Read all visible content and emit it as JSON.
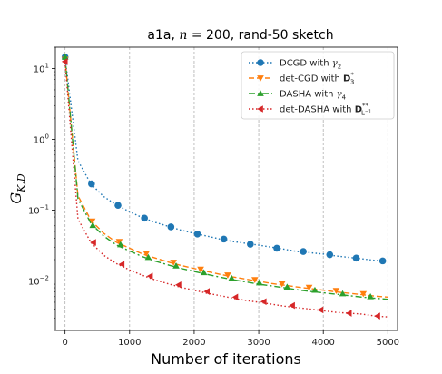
{
  "chart_data": {
    "type": "line",
    "title": "a1a, n = 200, rand-50 sketch",
    "title_parts": {
      "prefix": "a1a, ",
      "var": "n",
      "suffix": " = 200, rand-50 sketch"
    },
    "xlabel": "Number of iterations",
    "ylabel": {
      "main": "G",
      "sub": "K,D"
    },
    "xlim": [
      -150,
      5150
    ],
    "ylim": [
      0.002,
      20
    ],
    "yscale": "log",
    "xticks": [
      0,
      1000,
      2000,
      3000,
      4000,
      5000
    ],
    "xtick_labels": [
      "0",
      "1000",
      "2000",
      "3000",
      "4000",
      "5000"
    ],
    "yticks": [
      0.01,
      0.1,
      1,
      10
    ],
    "ytick_labels": [
      {
        "base": "10",
        "exp": "−2"
      },
      {
        "base": "10",
        "exp": "−1"
      },
      {
        "base": "10",
        "exp": "0"
      },
      {
        "base": "10",
        "exp": "1"
      }
    ],
    "grid": "x-only",
    "legend": "top-right",
    "series": [
      {
        "name": "DCGD with γ₂",
        "legend_main": "DCGD with ",
        "legend_math": "γ",
        "legend_sub": "2",
        "color": "#1f77b4",
        "dash": "dotted",
        "marker": "circle",
        "x": [
          0,
          200,
          400,
          600,
          800,
          1000,
          1200,
          1400,
          1600,
          1800,
          2000,
          2200,
          2400,
          2600,
          2800,
          3000,
          3200,
          3400,
          3600,
          3800,
          4000,
          4200,
          4400,
          4600,
          4800,
          5000
        ],
        "y": [
          14.5,
          0.5,
          0.235,
          0.155,
          0.118,
          0.095,
          0.078,
          0.067,
          0.059,
          0.052,
          0.047,
          0.043,
          0.039,
          0.036,
          0.034,
          0.032,
          0.03,
          0.028,
          0.026,
          0.025,
          0.024,
          0.0225,
          0.0215,
          0.0205,
          0.0195,
          0.019
        ],
        "marker_x": [
          0,
          410,
          820,
          1230,
          1640,
          2050,
          2460,
          2870,
          3280,
          3690,
          4100,
          4510,
          4920
        ],
        "marker_y": [
          14.5,
          0.235,
          0.117,
          0.077,
          0.058,
          0.046,
          0.039,
          0.033,
          0.029,
          0.026,
          0.0235,
          0.021,
          0.0192
        ]
      },
      {
        "name": "det-CGD with D₃*",
        "legend_main": "det-CGD with ",
        "legend_math": "D",
        "legend_sub": "3",
        "legend_sup": "*",
        "color": "#ff7f0e",
        "dash": "dashed",
        "marker": "triangle-down",
        "x": [
          0,
          200,
          400,
          600,
          800,
          1000,
          1200,
          1400,
          1600,
          1800,
          2000,
          2200,
          2400,
          2600,
          2800,
          3000,
          3200,
          3400,
          3600,
          3800,
          4000,
          4200,
          4400,
          4600,
          4800,
          5000
        ],
        "y": [
          13.5,
          0.16,
          0.072,
          0.047,
          0.035,
          0.029,
          0.024,
          0.021,
          0.0185,
          0.0165,
          0.015,
          0.0136,
          0.0124,
          0.0114,
          0.0106,
          0.0099,
          0.0092,
          0.0087,
          0.0082,
          0.0078,
          0.0074,
          0.007,
          0.0067,
          0.0064,
          0.0061,
          0.0059
        ],
        "marker_x": [
          0,
          420,
          840,
          1260,
          1680,
          2100,
          2520,
          2940,
          3360,
          3780,
          4200,
          4620
        ],
        "marker_y": [
          13.5,
          0.07,
          0.036,
          0.0245,
          0.0183,
          0.0146,
          0.0121,
          0.0104,
          0.0091,
          0.0081,
          0.0073,
          0.0066
        ]
      },
      {
        "name": "DASHA with γ₄",
        "legend_main": "DASHA with ",
        "legend_math": "γ",
        "legend_sub": "4",
        "color": "#2ca02c",
        "dash": "dashdot",
        "marker": "triangle-up",
        "x": [
          0,
          200,
          400,
          600,
          800,
          1000,
          1200,
          1400,
          1600,
          1800,
          2000,
          2200,
          2400,
          2600,
          2800,
          3000,
          3200,
          3400,
          3600,
          3800,
          4000,
          4200,
          4400,
          4600,
          4800,
          5000
        ],
        "y": [
          14.5,
          0.145,
          0.065,
          0.043,
          0.032,
          0.0265,
          0.022,
          0.019,
          0.0168,
          0.015,
          0.0136,
          0.0124,
          0.0113,
          0.0104,
          0.0097,
          0.009,
          0.0085,
          0.008,
          0.0075,
          0.0071,
          0.0068,
          0.0065,
          0.0062,
          0.0059,
          0.0057,
          0.0055
        ],
        "marker_x": [
          0,
          430,
          860,
          1290,
          1720,
          2150,
          2580,
          3010,
          3440,
          3870,
          4300,
          4730
        ],
        "marker_y": [
          14.5,
          0.061,
          0.0325,
          0.0215,
          0.0163,
          0.0131,
          0.0109,
          0.0094,
          0.0082,
          0.0074,
          0.0066,
          0.006
        ]
      },
      {
        "name": "det-DASHA with D**L⁻¹",
        "legend_main": "det-DASHA with ",
        "legend_math": "D",
        "legend_sub": "L",
        "legend_subsup": "−1",
        "legend_sup": "**",
        "color": "#d62728",
        "dash": "dotted",
        "marker": "triangle-left",
        "x": [
          0,
          200,
          400,
          600,
          800,
          1000,
          1200,
          1400,
          1600,
          1800,
          2000,
          2200,
          2400,
          2600,
          2800,
          3000,
          3200,
          3400,
          3600,
          3800,
          4000,
          4200,
          4400,
          4600,
          4800,
          5000
        ],
        "y": [
          12.5,
          0.075,
          0.035,
          0.023,
          0.0175,
          0.0143,
          0.012,
          0.0103,
          0.0091,
          0.0081,
          0.0074,
          0.0067,
          0.0062,
          0.0057,
          0.0053,
          0.005,
          0.0047,
          0.0044,
          0.0042,
          0.004,
          0.0038,
          0.0036,
          0.0035,
          0.0034,
          0.0032,
          0.0031
        ],
        "marker_x": [
          0,
          440,
          880,
          1320,
          1760,
          2200,
          2640,
          3080,
          3520,
          3960,
          4400,
          4840
        ],
        "marker_y": [
          12.5,
          0.035,
          0.0172,
          0.0117,
          0.0088,
          0.0071,
          0.0059,
          0.0051,
          0.0045,
          0.0039,
          0.0035,
          0.0032
        ]
      }
    ]
  }
}
